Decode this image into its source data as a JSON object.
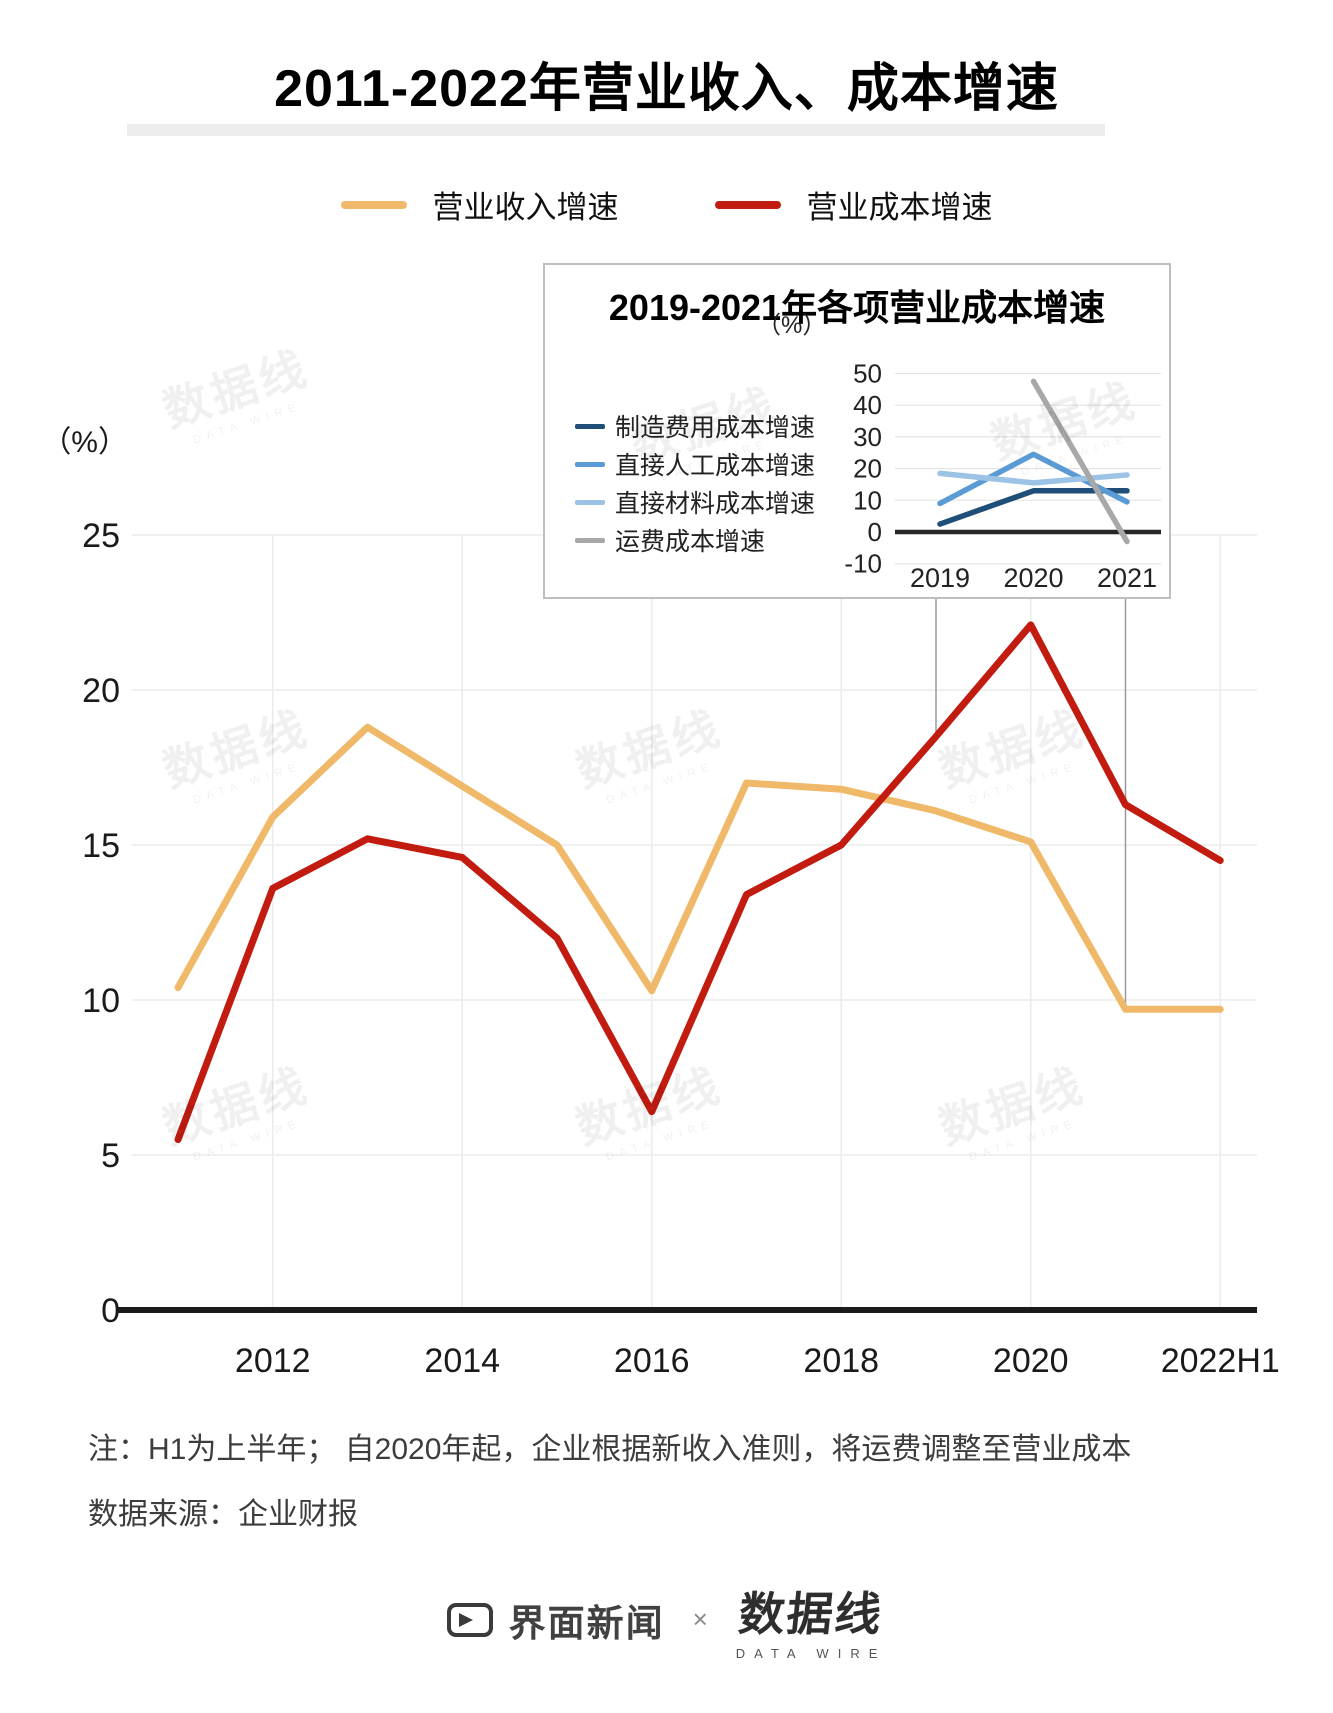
{
  "page": {
    "title": "2011-2022年营业收入、成本增速"
  },
  "legend": [
    {
      "label": "营业收入增速",
      "color": "#F0B969"
    },
    {
      "label": "营业成本增速",
      "color": "#C21B10"
    }
  ],
  "notes": {
    "note1": "注：H1为上半年； 自2020年起，企业根据新收入准则，将运费调整至营业成本",
    "source": "数据来源：企业财报"
  },
  "footer": {
    "jiemian": "界面新闻",
    "times": "×",
    "datawire_cn": "数据线",
    "datawire_en": "DATA WIRE"
  },
  "watermark": {
    "cn": "数据线",
    "en": "DATA WIRE"
  },
  "chart_data": [
    {
      "id": "main",
      "type": "line",
      "title": "2011-2022年营业收入、成本增速",
      "unit_label": "（%）",
      "categories": [
        "2011",
        "2012",
        "2013",
        "2014",
        "2015",
        "2016",
        "2017",
        "2018",
        "2019",
        "2020",
        "2021",
        "2022H1"
      ],
      "x_tick_labels": [
        "2012",
        "2014",
        "2016",
        "2018",
        "2020",
        "2022H1"
      ],
      "x_tick_indices": [
        1,
        3,
        5,
        7,
        9,
        11
      ],
      "yticks": [
        0,
        5,
        10,
        15,
        20,
        25
      ],
      "ylim": [
        0,
        25
      ],
      "grid": "horizontal and vertical, light gray",
      "legend_position": "top",
      "series": [
        {
          "name": "营业收入增速",
          "color": "#F0B969",
          "values": [
            10.4,
            15.9,
            18.8,
            16.9,
            15.0,
            10.3,
            17.0,
            16.8,
            16.1,
            15.1,
            9.7,
            9.7
          ]
        },
        {
          "name": "营业成本增速",
          "color": "#C21B10",
          "values": [
            5.5,
            13.6,
            15.2,
            14.6,
            12.0,
            6.4,
            13.4,
            15.0,
            18.5,
            22.1,
            16.3,
            14.5
          ]
        }
      ],
      "callouts": {
        "note": "thin lines linking inset x-positions 2019 and 2021 to main chart",
        "indices": [
          8,
          10
        ]
      }
    },
    {
      "id": "inset",
      "type": "line",
      "title": "2019-2021年各项营业成本增速",
      "unit_label": "（%）",
      "categories": [
        "2019",
        "2020",
        "2021"
      ],
      "yticks": [
        -10,
        0,
        10,
        20,
        30,
        40,
        50
      ],
      "ylim": [
        -10,
        50
      ],
      "grid": "horizontal, light gray; zero axis thick black",
      "legend_position": "left",
      "series": [
        {
          "name": "制造费用成本增速",
          "color": "#1F4E79",
          "values": [
            2.5,
            13,
            13
          ]
        },
        {
          "name": "直接人工成本增速",
          "color": "#5B9BD5",
          "values": [
            9,
            24.5,
            9.5
          ]
        },
        {
          "name": "直接材料成本增速",
          "color": "#9CC3E5",
          "values": [
            18.5,
            15.5,
            18
          ]
        },
        {
          "name": "运费成本增速",
          "color": "#A8A8A8",
          "values": [
            null,
            47.5,
            -3
          ]
        }
      ]
    }
  ]
}
